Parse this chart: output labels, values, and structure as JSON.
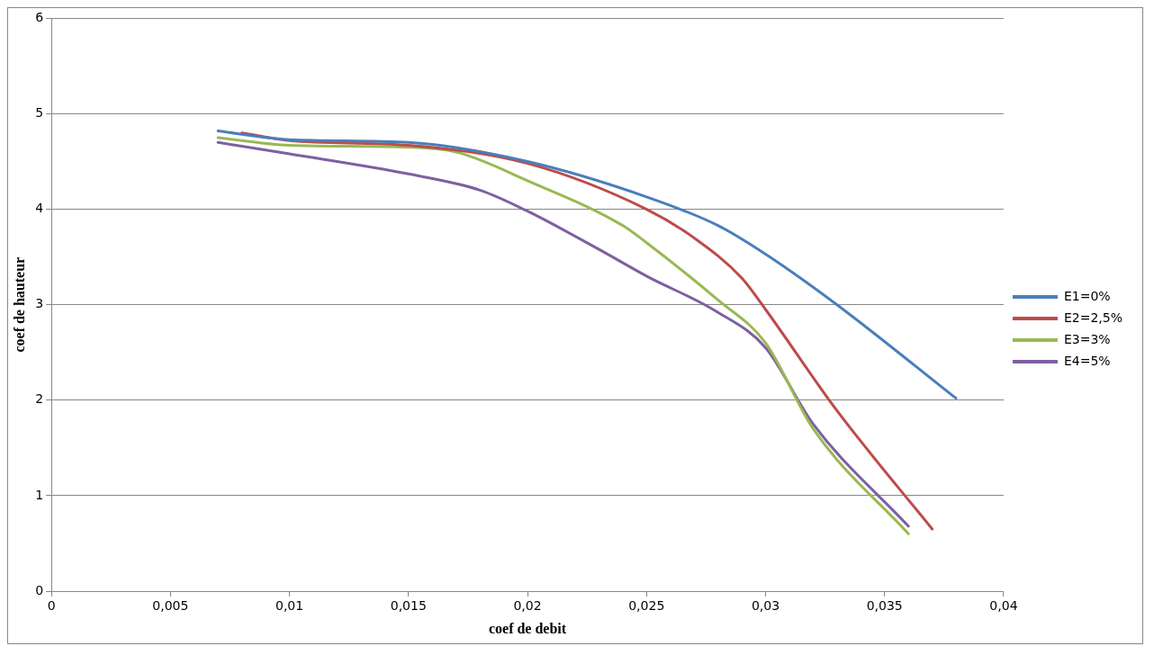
{
  "chart_data": {
    "type": "line",
    "xlabel": "coef de debit",
    "ylabel": "coef de hauteur",
    "xlim": [
      0,
      0.04
    ],
    "ylim": [
      0,
      6
    ],
    "xticks": [
      0,
      {
        "value": 0.005,
        "label": "0,005"
      },
      {
        "value": 0.01,
        "label": "0,01"
      },
      {
        "value": 0.015,
        "label": "0,015"
      },
      {
        "value": 0.02,
        "label": "0,02"
      },
      {
        "value": 0.025,
        "label": "0,025"
      },
      {
        "value": 0.03,
        "label": "0,03"
      },
      {
        "value": 0.035,
        "label": "0,035"
      },
      {
        "value": 0.04,
        "label": "0,04"
      }
    ],
    "yticks": [
      0,
      1,
      2,
      3,
      4,
      5,
      6
    ],
    "grid": "y",
    "legend": "right",
    "marker": "none",
    "line_style": "solid",
    "series": [
      {
        "name": "E1=0%",
        "color": "#4a7ebb",
        "x": [
          0.007,
          0.01,
          0.015,
          0.02,
          0.025,
          0.028,
          0.03,
          0.033,
          0.038
        ],
        "values": [
          4.82,
          4.73,
          4.7,
          4.5,
          4.13,
          3.83,
          3.53,
          3.0,
          2.02
        ]
      },
      {
        "name": "E2=2,5%",
        "color": "#be4b48",
        "x": [
          0.008,
          0.01,
          0.015,
          0.02,
          0.025,
          0.027,
          0.029,
          0.03,
          0.033,
          0.037
        ],
        "values": [
          4.8,
          4.72,
          4.67,
          4.48,
          4.0,
          3.7,
          3.28,
          2.95,
          1.89,
          0.65
        ]
      },
      {
        "name": "E3=3%",
        "color": "#98b954",
        "x": [
          0.007,
          0.01,
          0.015,
          0.017,
          0.02,
          0.024,
          0.025,
          0.028,
          0.03,
          0.032,
          0.036
        ],
        "values": [
          4.75,
          4.67,
          4.65,
          4.6,
          4.3,
          3.83,
          3.65,
          3.05,
          2.6,
          1.7,
          0.6
        ]
      },
      {
        "name": "E4=5%",
        "color": "#7d60a0",
        "x": [
          0.007,
          0.01,
          0.015,
          0.018,
          0.02,
          0.023,
          0.025,
          0.028,
          0.03,
          0.032,
          0.036
        ],
        "values": [
          4.7,
          4.58,
          4.37,
          4.2,
          3.98,
          3.58,
          3.3,
          2.92,
          2.55,
          1.75,
          0.68
        ]
      }
    ]
  }
}
